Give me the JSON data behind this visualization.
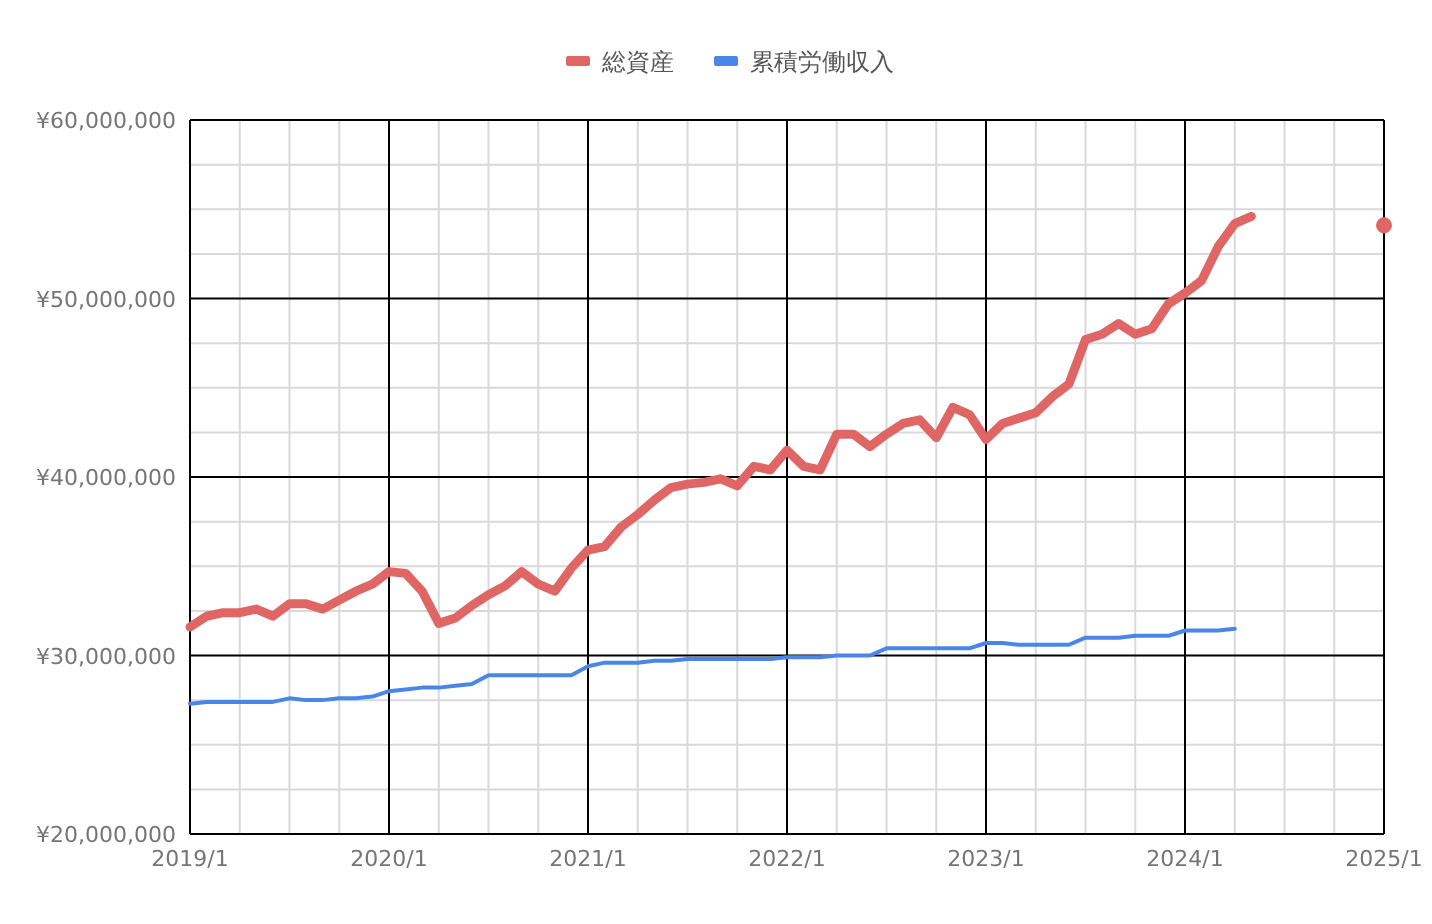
{
  "chart_data": {
    "type": "line",
    "x": [
      "2019-01",
      "2019-02",
      "2019-03",
      "2019-04",
      "2019-05",
      "2019-06",
      "2019-07",
      "2019-08",
      "2019-09",
      "2019-10",
      "2019-11",
      "2019-12",
      "2020-01",
      "2020-02",
      "2020-03",
      "2020-04",
      "2020-05",
      "2020-06",
      "2020-07",
      "2020-08",
      "2020-09",
      "2020-10",
      "2020-11",
      "2020-12",
      "2021-01",
      "2021-02",
      "2021-03",
      "2021-04",
      "2021-05",
      "2021-06",
      "2021-07",
      "2021-08",
      "2021-09",
      "2021-10",
      "2021-11",
      "2021-12",
      "2022-01",
      "2022-02",
      "2022-03",
      "2022-04",
      "2022-05",
      "2022-06",
      "2022-07",
      "2022-08",
      "2022-09",
      "2022-10",
      "2022-11",
      "2022-12",
      "2023-01",
      "2023-02",
      "2023-03",
      "2023-04",
      "2023-05",
      "2023-06",
      "2023-07",
      "2023-08",
      "2023-09",
      "2023-10",
      "2023-11",
      "2023-12",
      "2024-01",
      "2024-02",
      "2024-03",
      "2024-04"
    ],
    "series": [
      {
        "name": "総資産",
        "color": "#e06666",
        "x": [
          "2019-01",
          "2019-02",
          "2019-03",
          "2019-04",
          "2019-05",
          "2019-06",
          "2019-07",
          "2019-08",
          "2019-09",
          "2019-10",
          "2019-11",
          "2019-12",
          "2020-01",
          "2020-02",
          "2020-03",
          "2020-04",
          "2020-05",
          "2020-06",
          "2020-07",
          "2020-08",
          "2020-09",
          "2020-10",
          "2020-11",
          "2020-12",
          "2021-01",
          "2021-02",
          "2021-03",
          "2021-04",
          "2021-05",
          "2021-06",
          "2021-07",
          "2021-08",
          "2021-09",
          "2021-10",
          "2021-11",
          "2021-12",
          "2022-01",
          "2022-02",
          "2022-03",
          "2022-04",
          "2022-05",
          "2022-06",
          "2022-07",
          "2022-08",
          "2022-09",
          "2022-10",
          "2022-11",
          "2022-12",
          "2023-01",
          "2023-02",
          "2023-03",
          "2023-04",
          "2023-05",
          "2023-06",
          "2023-07",
          "2023-08",
          "2023-09",
          "2023-10",
          "2023-11",
          "2023-12",
          "2024-01",
          "2024-02",
          "2024-03",
          "2024-04",
          "2024-05"
        ],
        "values": [
          31600000,
          32200000,
          32400000,
          32400000,
          32600000,
          32200000,
          32900000,
          32900000,
          32600000,
          33100000,
          33600000,
          34000000,
          34700000,
          34600000,
          33600000,
          31800000,
          32100000,
          32800000,
          33400000,
          33900000,
          34700000,
          34000000,
          33600000,
          34900000,
          35900000,
          36100000,
          37200000,
          37900000,
          38700000,
          39400000,
          39600000,
          39700000,
          39900000,
          39500000,
          40600000,
          40400000,
          41500000,
          40600000,
          40400000,
          42400000,
          42400000,
          41700000,
          42400000,
          43000000,
          43200000,
          42200000,
          43900000,
          43500000,
          42100000,
          43000000,
          43300000,
          43600000,
          44500000,
          45200000,
          47700000,
          48000000,
          48600000,
          48000000,
          48300000,
          49700000,
          50300000,
          51000000,
          52900000,
          54200000,
          54600000
        ]
      },
      {
        "type": "scatter",
        "marker": "circle",
        "color": "#e06666",
        "x": [
          "2025-01"
        ],
        "values": [
          54100000
        ]
      },
      {
        "name": "累積労働収入",
        "color": "#4a86e8",
        "values": [
          27300000,
          27400000,
          27400000,
          27400000,
          27400000,
          27400000,
          27600000,
          27500000,
          27500000,
          27600000,
          27600000,
          27700000,
          28000000,
          28100000,
          28200000,
          28200000,
          28300000,
          28400000,
          28900000,
          28900000,
          28900000,
          28900000,
          28900000,
          28900000,
          29400000,
          29600000,
          29600000,
          29600000,
          29700000,
          29700000,
          29800000,
          29800000,
          29800000,
          29800000,
          29800000,
          29800000,
          29900000,
          29900000,
          29900000,
          30000000,
          30000000,
          30000000,
          30400000,
          30400000,
          30400000,
          30400000,
          30400000,
          30400000,
          30700000,
          30700000,
          30600000,
          30600000,
          30600000,
          30600000,
          31000000,
          31000000,
          31000000,
          31100000,
          31100000,
          31100000,
          31400000,
          31400000,
          31400000,
          31500000
        ]
      }
    ],
    "xlim": [
      "2019-01",
      "2025-01"
    ],
    "xticks": [
      {
        "value": "2019-01",
        "label": "2019/1"
      },
      {
        "value": "2020-01",
        "label": "2020/1"
      },
      {
        "value": "2021-01",
        "label": "2021/1"
      },
      {
        "value": "2022-01",
        "label": "2022/1"
      },
      {
        "value": "2023-01",
        "label": "2023/1"
      },
      {
        "value": "2024-01",
        "label": "2024/1"
      },
      {
        "value": "2025-01",
        "label": "2025/1"
      }
    ],
    "ylim": [
      20000000,
      60000000
    ],
    "yticks": [
      {
        "value": 20000000,
        "label": "¥20,000,000"
      },
      {
        "value": 30000000,
        "label": "¥30,000,000"
      },
      {
        "value": 40000000,
        "label": "¥40,000,000"
      },
      {
        "value": 50000000,
        "label": "¥50,000,000"
      },
      {
        "value": 60000000,
        "label": "¥60,000,000"
      }
    ],
    "grid": true,
    "legend": "top",
    "marker": "none",
    "line_style": "solid"
  }
}
